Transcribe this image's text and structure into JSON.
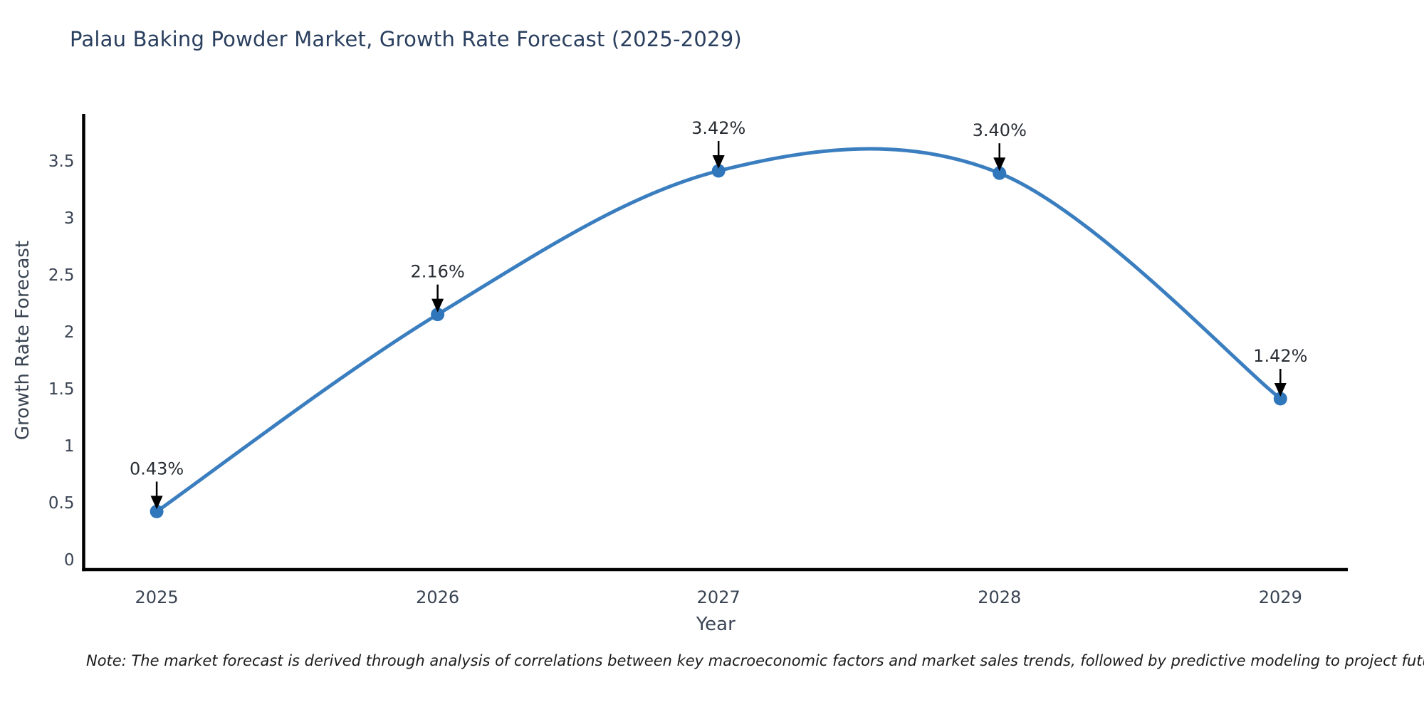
{
  "page": {
    "note": "Note: The market forecast is derived through analysis of correlations between key macroeconomic factors and market sales trends, followed by predictive modeling to project future sales"
  },
  "chart_data": {
    "type": "line",
    "title": "Palau Baking Powder Market, Growth Rate Forecast (2025-2029)",
    "xlabel": "Year",
    "ylabel": "Growth Rate Forecast",
    "x": [
      2025,
      2026,
      2027,
      2028,
      2029
    ],
    "values": [
      0.43,
      2.16,
      3.42,
      3.4,
      1.42
    ],
    "point_labels": [
      "0.43%",
      "2.16%",
      "3.42%",
      "3.40%",
      "1.42%"
    ],
    "xtick_labels": [
      "2025",
      "2026",
      "2027",
      "2028",
      "2029"
    ],
    "ytick_values": [
      0,
      0.5,
      1,
      1.5,
      2,
      2.5,
      3,
      3.5
    ],
    "ytick_labels": [
      "0",
      "0.5",
      "1",
      "1.5",
      "2",
      "2.5",
      "3",
      "3.5"
    ],
    "xlim": [
      2024.74,
      2029.24
    ],
    "ylim": [
      -0.08,
      3.92
    ],
    "grid": false,
    "legend": false,
    "smooth": true,
    "colors": {
      "line": "#3a7ebf",
      "marker": "#3076bb",
      "axis": "#000000",
      "tick_text": "#3a4453",
      "axis_label_text": "#3a4453",
      "title_text": "#2a3f5f",
      "annotation_text": "#282d33",
      "annotation_arrow": "#000000"
    }
  }
}
